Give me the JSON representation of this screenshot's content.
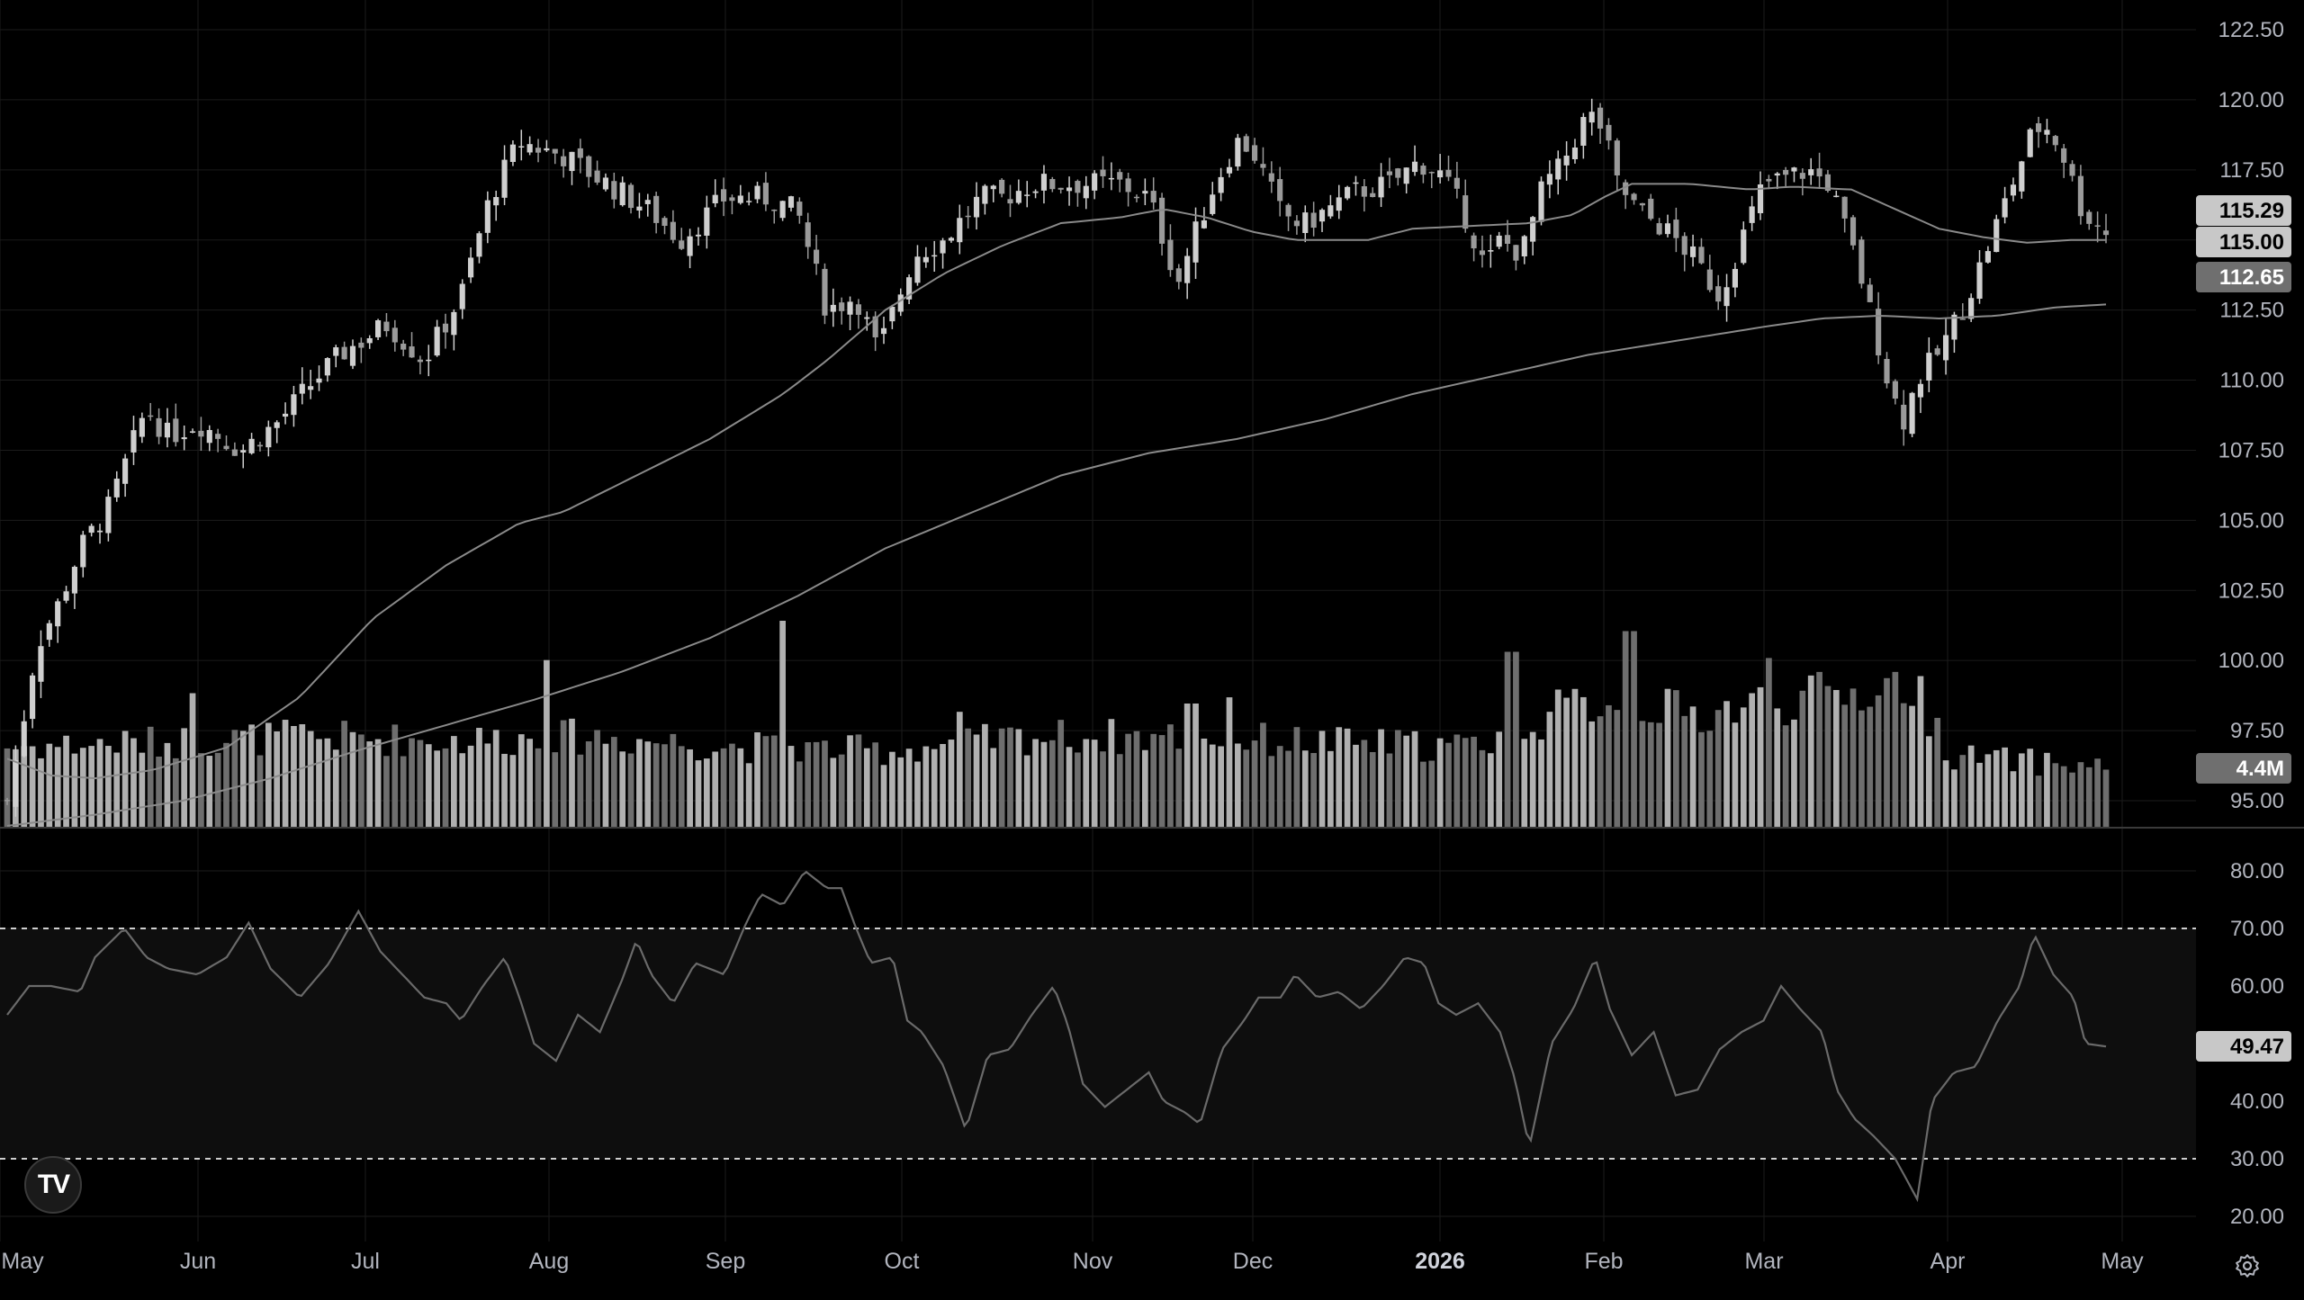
{
  "colors": {
    "background": "#000000",
    "grid": "#1b1b1b",
    "candle_up": "#cfcfcf",
    "candle_down": "#9a9a9a",
    "ma_line": "#8a8a8a",
    "rsi_line": "#6a6a6a",
    "rsi_band": "#0e0e0e",
    "badge_bg": "#c8c8c8",
    "badge_dark_bg": "#6f6f6f"
  },
  "price_axis": {
    "ticks": [
      "122.50",
      "120.00",
      "117.50",
      "115.00",
      "112.50",
      "110.00",
      "107.50",
      "105.00",
      "102.50",
      "100.00",
      "97.50",
      "95.00"
    ],
    "badges": {
      "last_price": "115.29",
      "ma_short": "115.00",
      "ma_long": "112.65",
      "volume": "4.4M"
    }
  },
  "rsi_axis": {
    "ticks": [
      "80.00",
      "70.00",
      "60.00",
      "40.00",
      "30.00",
      "20.00"
    ],
    "value_badge": "49.47"
  },
  "time_axis": {
    "labels": [
      {
        "text": "May",
        "bold": false
      },
      {
        "text": "Jun",
        "bold": false
      },
      {
        "text": "Jul",
        "bold": false
      },
      {
        "text": "Aug",
        "bold": false
      },
      {
        "text": "Sep",
        "bold": false
      },
      {
        "text": "Oct",
        "bold": false
      },
      {
        "text": "Nov",
        "bold": false
      },
      {
        "text": "Dec",
        "bold": false
      },
      {
        "text": "2026",
        "bold": true
      },
      {
        "text": "Feb",
        "bold": false
      },
      {
        "text": "Mar",
        "bold": false
      },
      {
        "text": "Apr",
        "bold": false
      },
      {
        "text": "May",
        "bold": false
      }
    ]
  },
  "icons": {
    "logo": "tradingview-logo-icon",
    "logo_glyph": "TV",
    "settings": "gear-icon"
  },
  "chart_data": {
    "type": "candlestick",
    "price_range": [
      93.0,
      123.5
    ],
    "rsi_range": [
      17,
      84
    ],
    "rsi_levels": [
      70,
      30
    ],
    "grid": true,
    "anchors": {
      "close": [
        [
          0,
          95
        ],
        [
          8,
          97
        ],
        [
          20,
          100.5
        ],
        [
          35,
          102
        ],
        [
          50,
          104
        ],
        [
          70,
          105.5
        ],
        [
          95,
          109
        ],
        [
          110,
          108
        ],
        [
          130,
          108.5
        ],
        [
          160,
          107.5
        ],
        [
          185,
          108.5
        ],
        [
          210,
          110
        ],
        [
          230,
          111
        ],
        [
          260,
          112
        ],
        [
          285,
          110.7
        ],
        [
          310,
          113
        ],
        [
          330,
          116.5
        ],
        [
          350,
          118.5
        ],
        [
          380,
          118
        ],
        [
          410,
          117
        ],
        [
          440,
          116
        ],
        [
          460,
          115
        ],
        [
          490,
          116.5
        ],
        [
          520,
          116.5
        ],
        [
          540,
          116
        ],
        [
          560,
          112.5
        ],
        [
          580,
          113
        ],
        [
          595,
          111
        ],
        [
          620,
          114.5
        ],
        [
          640,
          115
        ],
        [
          665,
          116.5
        ],
        [
          680,
          116.5
        ],
        [
          700,
          117
        ],
        [
          720,
          117
        ],
        [
          760,
          117
        ],
        [
          780,
          116.5
        ],
        [
          790,
          115
        ],
        [
          800,
          113.5
        ],
        [
          810,
          115
        ],
        [
          825,
          117
        ],
        [
          840,
          118.5
        ],
        [
          850,
          118.3
        ],
        [
          870,
          116
        ],
        [
          885,
          115.5
        ],
        [
          900,
          116
        ],
        [
          920,
          116.7
        ],
        [
          945,
          117
        ],
        [
          965,
          117.8
        ],
        [
          980,
          117.3
        ],
        [
          995,
          116
        ],
        [
          1010,
          114
        ],
        [
          1020,
          115
        ],
        [
          1035,
          114.5
        ],
        [
          1050,
          117
        ],
        [
          1060,
          117.5
        ],
        [
          1070,
          118.5
        ],
        [
          1080,
          119.5
        ],
        [
          1090,
          119
        ],
        [
          1100,
          117
        ],
        [
          1115,
          116
        ],
        [
          1130,
          115.5
        ],
        [
          1140,
          115
        ],
        [
          1150,
          114.5
        ],
        [
          1170,
          113
        ],
        [
          1185,
          115
        ],
        [
          1200,
          117
        ],
        [
          1215,
          117.2
        ],
        [
          1230,
          117.5
        ],
        [
          1245,
          117
        ],
        [
          1255,
          115.5
        ],
        [
          1265,
          114
        ],
        [
          1275,
          112
        ],
        [
          1285,
          110
        ],
        [
          1295,
          108.5
        ],
        [
          1305,
          110
        ],
        [
          1320,
          111
        ],
        [
          1340,
          113
        ],
        [
          1355,
          115
        ],
        [
          1370,
          117
        ],
        [
          1385,
          119
        ],
        [
          1395,
          119
        ],
        [
          1405,
          118
        ],
        [
          1418,
          116
        ],
        [
          1434,
          115.3
        ]
      ],
      "volume": [
        [
          0,
          0.4
        ],
        [
          100,
          0.42
        ],
        [
          200,
          0.45
        ],
        [
          300,
          0.43
        ],
        [
          400,
          0.45
        ],
        [
          500,
          0.4
        ],
        [
          600,
          0.38
        ],
        [
          700,
          0.45
        ],
        [
          800,
          0.45
        ],
        [
          900,
          0.42
        ],
        [
          1000,
          0.4
        ],
        [
          1050,
          0.55
        ],
        [
          1100,
          0.65
        ],
        [
          1150,
          0.55
        ],
        [
          1200,
          0.62
        ],
        [
          1250,
          0.65
        ],
        [
          1300,
          0.72
        ],
        [
          1330,
          0.35
        ],
        [
          1434,
          0.3
        ]
      ],
      "volume_spikes": [
        [
          128,
          0.65
        ],
        [
          367,
          0.81
        ],
        [
          532,
          1.0
        ],
        [
          1108,
          0.95
        ],
        [
          1205,
          0.82
        ],
        [
          1028,
          0.85
        ],
        [
          836,
          0.63
        ],
        [
          652,
          0.56
        ],
        [
          809,
          0.6
        ]
      ],
      "ma_short": [
        [
          0,
          96.5
        ],
        [
          30,
          95.9
        ],
        [
          60,
          95.8
        ],
        [
          100,
          96.1
        ],
        [
          150,
          96.9
        ],
        [
          200,
          98.7
        ],
        [
          250,
          101.5
        ],
        [
          300,
          103.4
        ],
        [
          350,
          104.9
        ],
        [
          380,
          105.3
        ],
        [
          430,
          106.6
        ],
        [
          480,
          107.9
        ],
        [
          530,
          109.5
        ],
        [
          560,
          110.7
        ],
        [
          600,
          112.5
        ],
        [
          640,
          113.8
        ],
        [
          680,
          114.8
        ],
        [
          720,
          115.6
        ],
        [
          760,
          115.8
        ],
        [
          790,
          116.1
        ],
        [
          820,
          115.8
        ],
        [
          850,
          115.3
        ],
        [
          880,
          115.0
        ],
        [
          930,
          115.0
        ],
        [
          960,
          115.4
        ],
        [
          1000,
          115.5
        ],
        [
          1040,
          115.6
        ],
        [
          1070,
          115.9
        ],
        [
          1090,
          116.5
        ],
        [
          1110,
          117.0
        ],
        [
          1150,
          117.0
        ],
        [
          1190,
          116.8
        ],
        [
          1220,
          116.9
        ],
        [
          1260,
          116.8
        ],
        [
          1290,
          116.1
        ],
        [
          1320,
          115.4
        ],
        [
          1350,
          115.1
        ],
        [
          1380,
          114.9
        ],
        [
          1410,
          115.0
        ],
        [
          1434,
          115.0
        ]
      ],
      "ma_long": [
        [
          0,
          94.1
        ],
        [
          60,
          94.5
        ],
        [
          120,
          95.0
        ],
        [
          180,
          95.8
        ],
        [
          240,
          96.8
        ],
        [
          300,
          97.7
        ],
        [
          360,
          98.6
        ],
        [
          420,
          99.6
        ],
        [
          480,
          100.8
        ],
        [
          540,
          102.3
        ],
        [
          600,
          104.0
        ],
        [
          660,
          105.3
        ],
        [
          720,
          106.6
        ],
        [
          780,
          107.4
        ],
        [
          840,
          107.9
        ],
        [
          900,
          108.6
        ],
        [
          960,
          109.5
        ],
        [
          1020,
          110.2
        ],
        [
          1080,
          110.9
        ],
        [
          1140,
          111.4
        ],
        [
          1200,
          111.9
        ],
        [
          1240,
          112.2
        ],
        [
          1280,
          112.3
        ],
        [
          1320,
          112.2
        ],
        [
          1360,
          112.3
        ],
        [
          1400,
          112.6
        ],
        [
          1434,
          112.7
        ]
      ],
      "rsi": [
        [
          0,
          55
        ],
        [
          15,
          60
        ],
        [
          30,
          60
        ],
        [
          50,
          59
        ],
        [
          60,
          65
        ],
        [
          80,
          70
        ],
        [
          95,
          65
        ],
        [
          110,
          63
        ],
        [
          130,
          62
        ],
        [
          150,
          65
        ],
        [
          165,
          71
        ],
        [
          180,
          63
        ],
        [
          200,
          58
        ],
        [
          220,
          64
        ],
        [
          240,
          73
        ],
        [
          255,
          66
        ],
        [
          270,
          62
        ],
        [
          285,
          58
        ],
        [
          300,
          57
        ],
        [
          310,
          54
        ],
        [
          325,
          60
        ],
        [
          340,
          65
        ],
        [
          350,
          58
        ],
        [
          360,
          50
        ],
        [
          375,
          47
        ],
        [
          390,
          55
        ],
        [
          405,
          52
        ],
        [
          420,
          61
        ],
        [
          430,
          68
        ],
        [
          440,
          62
        ],
        [
          455,
          57
        ],
        [
          470,
          64
        ],
        [
          490,
          62
        ],
        [
          505,
          71
        ],
        [
          515,
          76
        ],
        [
          530,
          74
        ],
        [
          545,
          80
        ],
        [
          560,
          77
        ],
        [
          570,
          77
        ],
        [
          580,
          70
        ],
        [
          590,
          64
        ],
        [
          605,
          65
        ],
        [
          615,
          54
        ],
        [
          625,
          52
        ],
        [
          640,
          46
        ],
        [
          655,
          35
        ],
        [
          670,
          48
        ],
        [
          685,
          49
        ],
        [
          700,
          55
        ],
        [
          715,
          60
        ],
        [
          725,
          53
        ],
        [
          735,
          43
        ],
        [
          750,
          39
        ],
        [
          765,
          42
        ],
        [
          780,
          45
        ],
        [
          790,
          40
        ],
        [
          805,
          38
        ],
        [
          815,
          36
        ],
        [
          830,
          49
        ],
        [
          845,
          54
        ],
        [
          855,
          58
        ],
        [
          870,
          58
        ],
        [
          880,
          62
        ],
        [
          895,
          58
        ],
        [
          910,
          59
        ],
        [
          925,
          56
        ],
        [
          940,
          60
        ],
        [
          955,
          65
        ],
        [
          968,
          64
        ],
        [
          978,
          57
        ],
        [
          990,
          55
        ],
        [
          1005,
          57
        ],
        [
          1020,
          52
        ],
        [
          1030,
          44
        ],
        [
          1040,
          32
        ],
        [
          1055,
          50
        ],
        [
          1070,
          56
        ],
        [
          1085,
          65
        ],
        [
          1095,
          56
        ],
        [
          1110,
          48
        ],
        [
          1125,
          52
        ],
        [
          1140,
          41
        ],
        [
          1155,
          42
        ],
        [
          1170,
          49
        ],
        [
          1185,
          52
        ],
        [
          1200,
          54
        ],
        [
          1212,
          60
        ],
        [
          1225,
          56
        ],
        [
          1240,
          52
        ],
        [
          1250,
          42
        ],
        [
          1262,
          37
        ],
        [
          1275,
          34
        ],
        [
          1290,
          30
        ],
        [
          1305,
          23
        ],
        [
          1315,
          40
        ],
        [
          1330,
          45
        ],
        [
          1345,
          46
        ],
        [
          1360,
          54
        ],
        [
          1375,
          60
        ],
        [
          1385,
          69
        ],
        [
          1398,
          62
        ],
        [
          1412,
          58
        ],
        [
          1420,
          50
        ],
        [
          1434,
          49.5
        ]
      ]
    }
  }
}
